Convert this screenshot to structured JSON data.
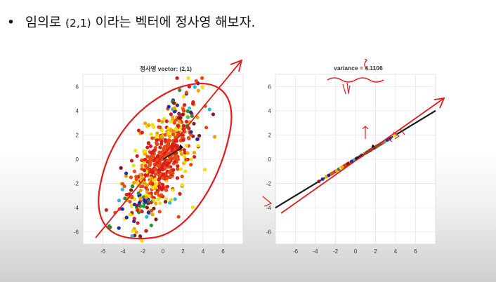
{
  "slide": {
    "bullet": "•",
    "text_before": "임의로 ",
    "vector": "(2,1)",
    "text_after": " 이라는 벡터에 정사영 해보자."
  },
  "colors": {
    "ink": "#e31b1b",
    "points": [
      "#d71d1d",
      "#e84a10",
      "#f0a300",
      "#f4dd11",
      "#36b3d9",
      "#1e2aa8",
      "#2a8f3c",
      "#8a1a1a"
    ]
  },
  "chart_data": [
    {
      "type": "scatter",
      "title": "정사영 vector: (2,1)",
      "xlabel": "",
      "ylabel": "",
      "xlim": [
        -8,
        8
      ],
      "ylim": [
        -7,
        7
      ],
      "xticks": [
        -6,
        -4,
        -2,
        0,
        2,
        4,
        6
      ],
      "yticks": [
        6,
        4,
        2,
        0,
        -2,
        -4,
        -6
      ],
      "grid": true,
      "point_count": 600,
      "distribution": "2D gaussian, correlated along direction (2,1)",
      "vector": [
        2,
        1
      ],
      "annotations": "hand-drawn red ellipse around the cloud and red arrow along the projection direction"
    },
    {
      "type": "scatter",
      "title": "variance = 4.1106",
      "xlabel": "",
      "ylabel": "",
      "xlim": [
        -8,
        8
      ],
      "ylim": [
        -7,
        7
      ],
      "xticks": [
        -6,
        -4,
        -2,
        0,
        2,
        4,
        6
      ],
      "yticks": [
        6,
        4,
        2,
        0,
        -2,
        -4,
        -6
      ],
      "grid": true,
      "variance": 4.1106,
      "projection_direction": [
        2,
        1
      ],
      "annotations": "hand-drawn red arrow along the projection line and scribbles under the title"
    }
  ]
}
